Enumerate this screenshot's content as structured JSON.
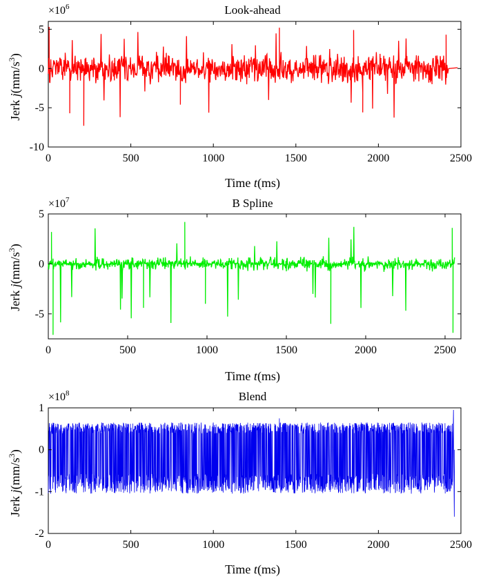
{
  "chart_data": [
    {
      "type": "line",
      "title": "Look-ahead",
      "xlabel": "Time t(ms)",
      "ylabel": "Jerk j(mm/s^3)",
      "exponent_base": "×10",
      "exponent_power": "6",
      "xlim": [
        0,
        2500
      ],
      "ylim": [
        -10,
        6
      ],
      "xticks": [
        "0",
        "500",
        "1000",
        "1500",
        "2000",
        "2500"
      ],
      "yticks": [
        "-10",
        "-5",
        "0",
        "5"
      ],
      "color": "#ff0000",
      "series": [
        {
          "duration": 2420,
          "noise_amplitude": 2.2,
          "spike_max": 5.2,
          "spike_min": -7.3,
          "tail_value": 0.1
        }
      ],
      "notable_points": [
        {
          "x": 5,
          "y": 5.3
        },
        {
          "x": 215,
          "y": -7.3
        },
        {
          "x": 130,
          "y": -5.7
        },
        {
          "x": 1400,
          "y": 5.2
        },
        {
          "x": 1850,
          "y": 4.9
        },
        {
          "x": 1905,
          "y": -5.6
        },
        {
          "x": 800,
          "y": -4.6
        },
        {
          "x": 2410,
          "y": 4.3
        }
      ],
      "grid": false
    },
    {
      "type": "line",
      "title": "B Spline",
      "xlabel": "Time t(ms)",
      "ylabel": "Jerk j(mm/s^3)",
      "exponent_base": "×10",
      "exponent_power": "7",
      "xlim": [
        0,
        2600
      ],
      "ylim": [
        -7.5,
        5
      ],
      "xticks": [
        "0",
        "500",
        "1000",
        "1500",
        "2000",
        "2500"
      ],
      "yticks": [
        "-5",
        "0",
        "5"
      ],
      "color": "#00ee00",
      "series": [
        {
          "duration": 2560,
          "noise_amplitude": 0.8,
          "spike_max": 4.2,
          "spike_min": -7.1
        }
      ],
      "notable_points": [
        {
          "x": 20,
          "y": 3.2
        },
        {
          "x": 30,
          "y": -7.1
        },
        {
          "x": 860,
          "y": 4.2
        },
        {
          "x": 600,
          "y": -4.4
        },
        {
          "x": 990,
          "y": -4.0
        },
        {
          "x": 1780,
          "y": -6.0
        },
        {
          "x": 2545,
          "y": 3.6
        },
        {
          "x": 2550,
          "y": -6.9
        }
      ],
      "grid": false
    },
    {
      "type": "line",
      "title": "Blend",
      "xlabel": "Time t(ms)",
      "ylabel": "Jerk j(mm/s^3)",
      "exponent_base": "×10",
      "exponent_power": "8",
      "xlim": [
        0,
        2500
      ],
      "ylim": [
        -2,
        1
      ],
      "xticks": [
        "0",
        "500",
        "1000",
        "1500",
        "2000",
        "2500"
      ],
      "yticks": [
        "-2",
        "-1",
        "0",
        "1"
      ],
      "color": "#0000ee",
      "series": [
        {
          "duration": 2450,
          "band_max": 0.65,
          "band_min": -1.05,
          "spike_max": 0.95,
          "spike_min": -1.6
        }
      ],
      "notable_points": [
        {
          "x": 2455,
          "y": 0.95
        },
        {
          "x": 2460,
          "y": -1.6
        },
        {
          "x": 1400,
          "y": 0.75
        }
      ],
      "grid": false
    }
  ]
}
